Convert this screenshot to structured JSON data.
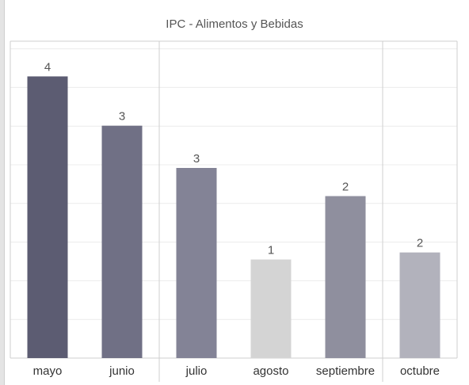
{
  "chart_data": {
    "type": "bar",
    "title": "IPC - Alimentos y Bebidas",
    "xlabel": "",
    "ylabel": "",
    "categories": [
      "mayo",
      "junio",
      "julio",
      "agosto",
      "septiembre",
      "octubre"
    ],
    "values": [
      4.0,
      3.3,
      2.7,
      1.4,
      2.3,
      1.5
    ],
    "data_labels": [
      "4",
      "3",
      "3",
      "1",
      "2",
      "2"
    ],
    "ylim": [
      0,
      4.5
    ],
    "grid": true,
    "group_separators_after": [
      "junio",
      "septiembre"
    ],
    "colors": [
      "#5c5c72",
      "#707085",
      "#838396",
      "#d4d4d4",
      "#8f8f9e",
      "#b2b2bc"
    ]
  }
}
